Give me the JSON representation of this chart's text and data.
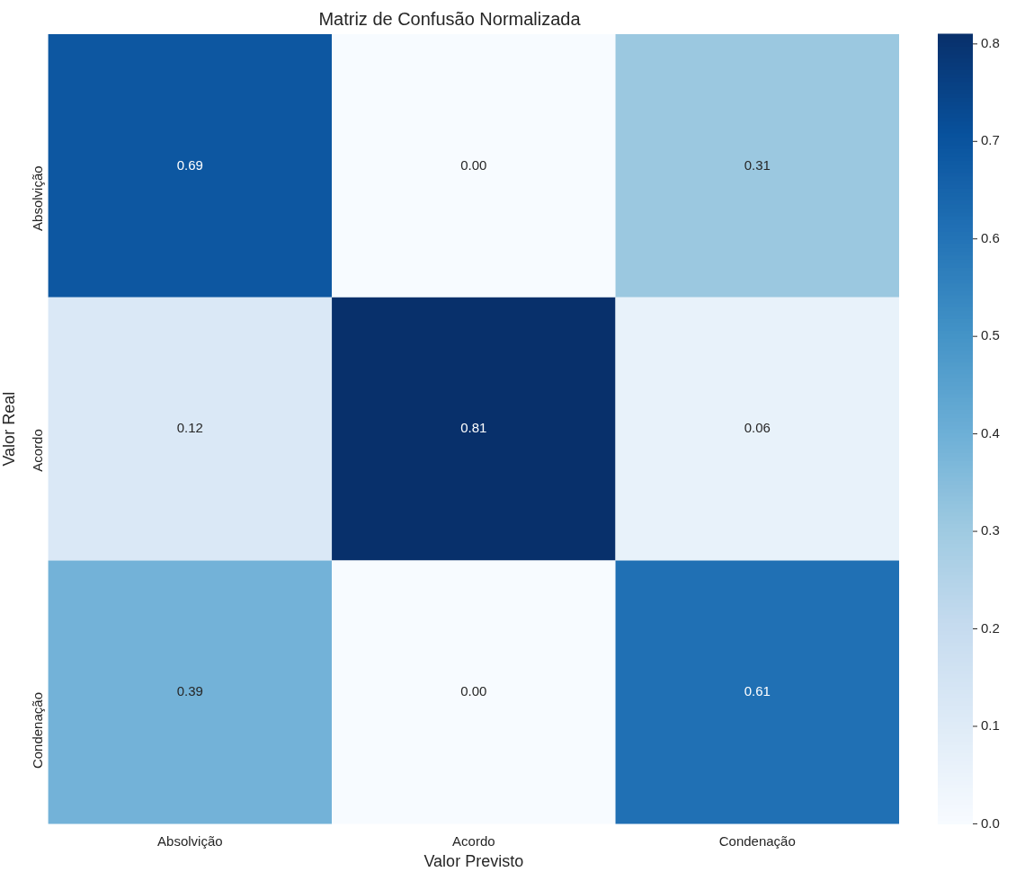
{
  "chart_data": {
    "type": "heatmap",
    "title": "Matriz de Confusão Normalizada",
    "xlabel": "Valor Previsto",
    "ylabel": "Valor Real",
    "categories": [
      "Absolvição",
      "Acordo",
      "Condenação"
    ],
    "y_categories": [
      "Absolvição",
      "Acordo",
      "Condenação"
    ],
    "cells": [
      [
        0.69,
        0.0,
        0.31
      ],
      [
        0.12,
        0.81,
        0.06
      ],
      [
        0.39,
        0.0,
        0.61
      ]
    ],
    "cell_labels": [
      [
        "0.69",
        "0.00",
        "0.31"
      ],
      [
        "0.12",
        "0.81",
        "0.06"
      ],
      [
        "0.39",
        "0.00",
        "0.61"
      ]
    ],
    "clim": [
      0,
      0.81
    ],
    "cticks": [
      {
        "value": 0,
        "label": "0.0"
      },
      0.1,
      0.2,
      0.3,
      0.4,
      0.5,
      0.6,
      0.7,
      0.8
    ],
    "data_labels": true
  }
}
